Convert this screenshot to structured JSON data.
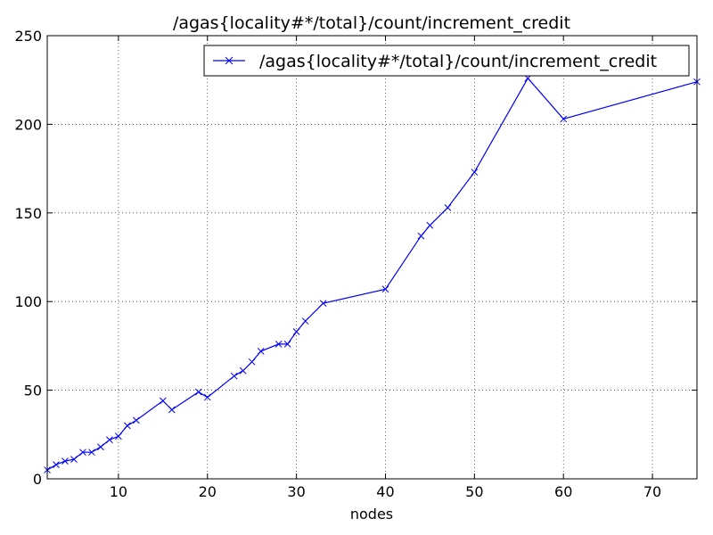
{
  "chart_data": {
    "type": "line",
    "title": "/agas{locality#*/total}/count/increment_credit",
    "xlabel": "nodes",
    "ylabel": "",
    "xlim": [
      2,
      75
    ],
    "ylim": [
      0,
      250
    ],
    "xticks": [
      10,
      20,
      30,
      40,
      50,
      60,
      70
    ],
    "yticks": [
      0,
      50,
      100,
      150,
      200,
      250
    ],
    "grid": true,
    "legend_position": "top-right",
    "series": [
      {
        "name": "/agas{locality#*/total}/count/increment_credit",
        "color": "#0000ff",
        "marker": "x",
        "x": [
          2,
          3,
          4,
          5,
          6,
          7,
          8,
          9,
          10,
          11,
          12,
          15,
          16,
          19,
          20,
          23,
          24,
          25,
          26,
          28,
          29,
          30,
          31,
          33,
          40,
          44,
          45,
          47,
          50,
          56,
          60,
          75
        ],
        "y": [
          5,
          8,
          10,
          11,
          15,
          15,
          18,
          22,
          24,
          30,
          33,
          44,
          39,
          49,
          46,
          58,
          61,
          66,
          72,
          76,
          76,
          83,
          89,
          99,
          107,
          137,
          143,
          153,
          173,
          226,
          203,
          224
        ]
      }
    ]
  }
}
